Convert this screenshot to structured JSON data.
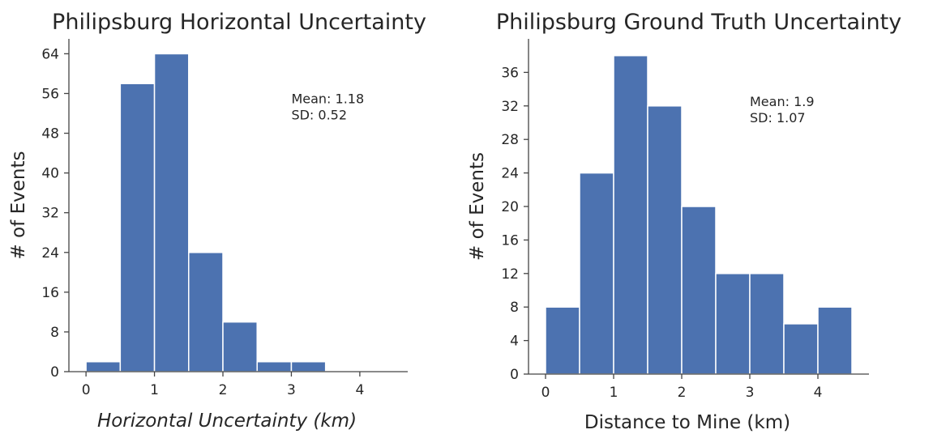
{
  "colors": {
    "bar": "#4c72b0",
    "bar_edge": "#ffffff",
    "axis": "#444444",
    "text": "#262626"
  },
  "chart_data": [
    {
      "type": "bar",
      "title": "Philipsburg Horizontal Uncertainty",
      "xlabel": "Horizontal Uncertainty (km)",
      "ylabel": "# of Events",
      "xlabel_style": "italic",
      "bin_edges": [
        0,
        0.5,
        1.0,
        1.5,
        2.0,
        2.5,
        3.0,
        3.5
      ],
      "values": [
        2,
        58,
        64,
        24,
        10,
        2,
        2
      ],
      "xlim": [
        -0.25,
        4.7
      ],
      "ylim": [
        0,
        67
      ],
      "xticks": [
        0,
        1,
        2,
        3,
        4
      ],
      "yticks": [
        0,
        8,
        16,
        24,
        32,
        40,
        48,
        56,
        64
      ],
      "annotations": [
        "Mean: 1.18",
        "SD: 0.52"
      ],
      "annotation_at": [
        3.0,
        54
      ]
    },
    {
      "type": "bar",
      "title": "Philipsburg Ground Truth Uncertainty",
      "xlabel": "Distance to Mine (km)",
      "ylabel": "# of Events",
      "xlabel_style": "normal",
      "bin_edges": [
        0,
        0.5,
        1.0,
        1.5,
        2.0,
        2.5,
        3.0,
        3.5,
        4.0,
        4.5
      ],
      "values": [
        8,
        24,
        38,
        32,
        20,
        12,
        12,
        6,
        8
      ],
      "xlim": [
        -0.25,
        4.75
      ],
      "ylim": [
        0,
        40
      ],
      "xticks": [
        0,
        1,
        2,
        3,
        4
      ],
      "yticks": [
        0,
        4,
        8,
        12,
        16,
        20,
        24,
        28,
        32,
        36
      ],
      "annotations": [
        "Mean: 1.9",
        "SD: 1.07"
      ],
      "annotation_at": [
        3.0,
        32
      ]
    }
  ]
}
